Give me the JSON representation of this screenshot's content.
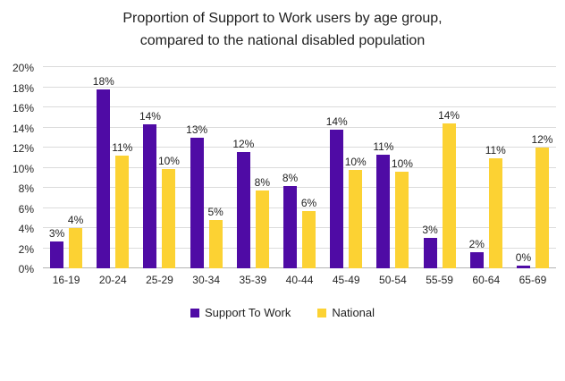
{
  "title": {
    "line1": "Proportion of Support to Work users by age group,",
    "line2": "compared to the national disabled population"
  },
  "colors": {
    "support_to_work": "#4F0BA5",
    "national": "#FCD233",
    "gridline": "#DBDBDB",
    "axis_line": "#B3B3B3",
    "text": "#1F1F1F"
  },
  "chart_data": {
    "type": "bar",
    "title": "Proportion of Support to Work users by age group, compared to the national disabled population",
    "xlabel": "",
    "ylabel": "",
    "grid": true,
    "legend_position": "bottom",
    "categories": [
      "16-19",
      "20-24",
      "25-29",
      "30-34",
      "35-39",
      "40-44",
      "45-49",
      "50-54",
      "55-59",
      "60-64",
      "65-69"
    ],
    "series": [
      {
        "name": "Support To Work",
        "color_key": "support_to_work",
        "labels": [
          "3%",
          "18%",
          "14%",
          "13%",
          "12%",
          "8%",
          "14%",
          "11%",
          "3%",
          "2%",
          "0%"
        ],
        "values": [
          2.7,
          17.8,
          14.3,
          13.0,
          11.6,
          8.2,
          13.8,
          11.3,
          3.0,
          1.6,
          0.3
        ]
      },
      {
        "name": "National",
        "color_key": "national",
        "labels": [
          "4%",
          "11%",
          "10%",
          "5%",
          "8%",
          "6%",
          "10%",
          "10%",
          "14%",
          "11%",
          "12%"
        ],
        "values": [
          4.0,
          11.2,
          9.9,
          4.8,
          7.7,
          5.7,
          9.8,
          9.6,
          14.4,
          10.9,
          12.0
        ]
      }
    ],
    "y_axis": {
      "min": 0,
      "max": 20,
      "tick_values": [
        0,
        2,
        4,
        6,
        8,
        10,
        12,
        14,
        16,
        18,
        20
      ],
      "tick_labels": [
        "0%",
        "2%",
        "4%",
        "6%",
        "8%",
        "10%",
        "12%",
        "14%",
        "16%",
        "18%",
        "20%"
      ]
    }
  }
}
